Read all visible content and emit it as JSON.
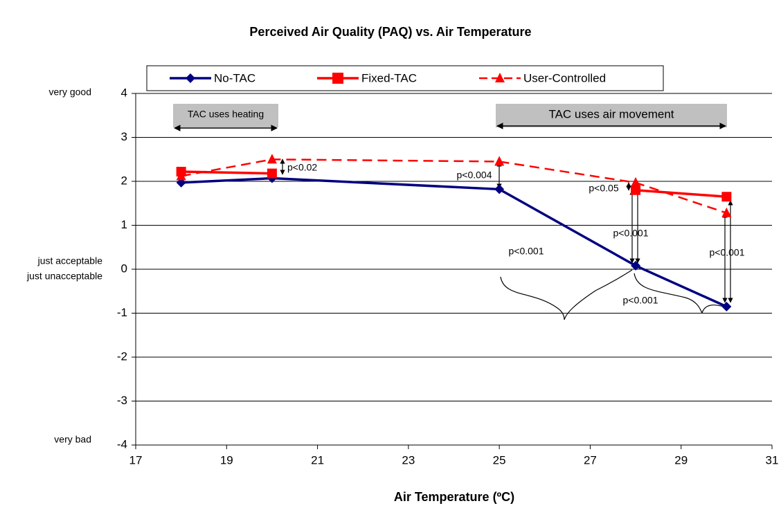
{
  "chart_data": {
    "type": "line",
    "title": "Perceived Air Quality (PAQ) vs.  Air Temperature",
    "xlabel": "Air Temperature (ºC)",
    "x": [
      18,
      20,
      25,
      28,
      30
    ],
    "series": [
      {
        "name": "No-TAC",
        "color": "#000080",
        "marker": "diamond",
        "dashed": false,
        "values": [
          1.97,
          2.07,
          1.82,
          0.08,
          -0.85
        ]
      },
      {
        "name": "Fixed-TAC",
        "color": "#ff0000",
        "marker": "square",
        "dashed": false,
        "values": [
          2.22,
          2.18,
          null,
          1.8,
          1.65
        ]
      },
      {
        "name": "User-Controlled",
        "color": "#ff0000",
        "marker": "triangle",
        "dashed": true,
        "values": [
          2.12,
          2.5,
          2.45,
          1.97,
          1.28
        ]
      }
    ],
    "xlim": [
      17,
      31
    ],
    "xticks": [
      17,
      19,
      21,
      23,
      25,
      27,
      29,
      31
    ],
    "ylim": [
      -4,
      4
    ],
    "yticks": [
      -4,
      -3,
      -2,
      -1,
      0,
      1,
      2,
      3,
      4
    ],
    "grid": true,
    "legend": "top",
    "y_labels": [
      "very good",
      "just acceptable",
      "just unacceptable",
      "very bad"
    ],
    "annotations": [
      "TAC uses heating",
      "TAC uses air movement",
      "p<0.02",
      "p<0.004",
      "p<0.05",
      "p<0.001",
      "p<0.001",
      "p<0.001",
      "p<0.001"
    ]
  }
}
